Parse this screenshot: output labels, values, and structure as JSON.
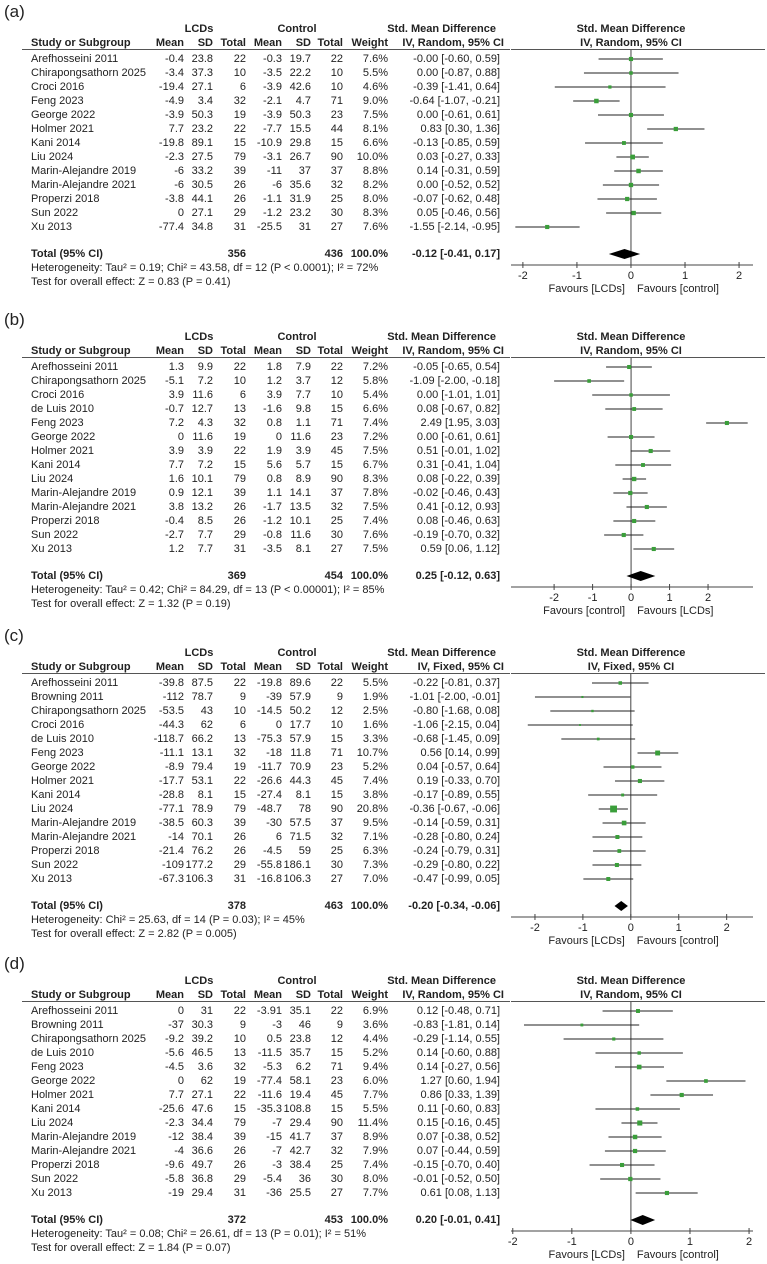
{
  "chart_data": [
    {
      "type": "forest",
      "panel_label": "(a)",
      "group_experimental": "LCDs",
      "group_control": "Control",
      "effect_title": "Std. Mean Difference",
      "method": "IV, Random, 95% CI",
      "columns": [
        "Study or Subgroup",
        "Mean",
        "SD",
        "Total",
        "Mean",
        "SD",
        "Total",
        "Weight"
      ],
      "studies": [
        [
          "Arefhosseini 2011",
          "-0.4",
          "23.8",
          "22",
          "-0.3",
          "19.7",
          "22",
          "7.6%",
          "-0.00 [-0.60, 0.59]"
        ],
        [
          "Chirapongsathorn 2025",
          "-3.4",
          "37.3",
          "10",
          "-3.5",
          "22.2",
          "10",
          "5.5%",
          "0.00 [-0.87, 0.88]"
        ],
        [
          "Croci 2016",
          "-19.4",
          "27.1",
          "6",
          "-3.9",
          "42.6",
          "10",
          "4.6%",
          "-0.39 [-1.41, 0.64]"
        ],
        [
          "Feng 2023",
          "-4.9",
          "3.4",
          "32",
          "-2.1",
          "4.7",
          "71",
          "9.0%",
          "-0.64 [-1.07, -0.21]"
        ],
        [
          "George 2022",
          "-3.9",
          "50.3",
          "19",
          "-3.9",
          "50.3",
          "23",
          "7.5%",
          "0.00 [-0.61, 0.61]"
        ],
        [
          "Holmer 2021",
          "7.7",
          "23.2",
          "22",
          "-7.7",
          "15.5",
          "44",
          "8.1%",
          "0.83 [0.30, 1.36]"
        ],
        [
          "Kani  2014",
          "-19.8",
          "89.1",
          "15",
          "-10.9",
          "29.8",
          "15",
          "6.6%",
          "-0.13 [-0.85, 0.59]"
        ],
        [
          "Liu 2024",
          "-2.3",
          "27.5",
          "79",
          "-3.1",
          "26.7",
          "90",
          "10.0%",
          "0.03 [-0.27, 0.33]"
        ],
        [
          "Marin-Alejandre 2019",
          "-6",
          "33.2",
          "39",
          "-11",
          "37",
          "37",
          "8.8%",
          "0.14 [-0.31, 0.59]"
        ],
        [
          "Marin-Alejandre 2021",
          "-6",
          "30.5",
          "26",
          "-6",
          "35.6",
          "32",
          "8.2%",
          "0.00 [-0.52, 0.52]"
        ],
        [
          "Properzi 2018",
          "-3.8",
          "44.1",
          "26",
          "-1.1",
          "31.9",
          "25",
          "8.0%",
          "-0.07 [-0.62, 0.48]"
        ],
        [
          "Sun 2022",
          "0",
          "27.1",
          "29",
          "-1.2",
          "23.2",
          "30",
          "8.3%",
          "0.05 [-0.46, 0.56]"
        ],
        [
          "Xu 2013",
          "-77.4",
          "34.8",
          "31",
          "-25.5",
          "31",
          "27",
          "7.6%",
          "-1.55 [-2.14, -0.95]"
        ]
      ],
      "total": {
        "label": "Total (95% CI)",
        "n_experimental": "356",
        "n_control": "436",
        "weight": "100.0%",
        "estimate": "-0.12 [-0.41, 0.17]"
      },
      "heterogeneity": "Heterogeneity: Tau² = 0.19; Chi² = 43.58, df = 12 (P < 0.0001); I² = 72%",
      "overall_effect": "Test for overall effect: Z = 0.83 (P = 0.41)",
      "xticks": [
        "-2",
        "-1",
        "0",
        "1",
        "2"
      ],
      "xlim": [
        -2.22,
        2.48
      ],
      "favours_left": "Favours [LCDs]",
      "favours_right": "Favours [control]"
    },
    {
      "type": "forest",
      "panel_label": "(b)",
      "group_experimental": "LCDs",
      "group_control": "Control",
      "effect_title": "Std. Mean Difference",
      "method": "IV, Random, 95% CI",
      "columns": [
        "Study or Subgroup",
        "Mean",
        "SD",
        "Total",
        "Mean",
        "SD",
        "Total",
        "Weight"
      ],
      "studies": [
        [
          "Arefhosseini 2011",
          "1.3",
          "9.9",
          "22",
          "1.8",
          "7.9",
          "22",
          "7.2%",
          "-0.05 [-0.65, 0.54]"
        ],
        [
          "Chirapongsathorn 2025",
          "-5.1",
          "7.2",
          "10",
          "1.2",
          "3.7",
          "12",
          "5.8%",
          "-1.09 [-2.00, -0.18]"
        ],
        [
          "Croci 2016",
          "3.9",
          "11.6",
          "6",
          "3.9",
          "7.7",
          "10",
          "5.4%",
          "0.00 [-1.01, 1.01]"
        ],
        [
          "de Luis 2010",
          "-0.7",
          "12.7",
          "13",
          "-1.6",
          "9.8",
          "15",
          "6.6%",
          "0.08 [-0.67, 0.82]"
        ],
        [
          "Feng 2023",
          "7.2",
          "4.3",
          "32",
          "0.8",
          "1.1",
          "71",
          "7.4%",
          "2.49 [1.95, 3.03]"
        ],
        [
          "George 2022",
          "0",
          "11.6",
          "19",
          "0",
          "11.6",
          "23",
          "7.2%",
          "0.00 [-0.61, 0.61]"
        ],
        [
          "Holmer 2021",
          "3.9",
          "3.9",
          "22",
          "1.9",
          "3.9",
          "45",
          "7.5%",
          "0.51 [-0.01, 1.02]"
        ],
        [
          "Kani  2014",
          "7.7",
          "7.2",
          "15",
          "5.6",
          "5.7",
          "15",
          "6.7%",
          "0.31 [-0.41, 1.04]"
        ],
        [
          "Liu 2024",
          "1.6",
          "10.1",
          "79",
          "0.8",
          "8.9",
          "90",
          "8.3%",
          "0.08 [-0.22, 0.39]"
        ],
        [
          "Marin-Alejandre 2019",
          "0.9",
          "12.1",
          "39",
          "1.1",
          "14.1",
          "37",
          "7.8%",
          "-0.02 [-0.46, 0.43]"
        ],
        [
          "Marin-Alejandre 2021",
          "3.8",
          "13.2",
          "26",
          "-1.7",
          "13.5",
          "32",
          "7.5%",
          "0.41 [-0.12, 0.93]"
        ],
        [
          "Properzi 2018",
          "-0.4",
          "8.5",
          "26",
          "-1.2",
          "10.1",
          "25",
          "7.4%",
          "0.08 [-0.46, 0.63]"
        ],
        [
          "Sun 2022",
          "-2.7",
          "7.7",
          "29",
          "-0.8",
          "11.6",
          "30",
          "7.6%",
          "-0.19 [-0.70, 0.32]"
        ],
        [
          "Xu 2013",
          "1.2",
          "7.7",
          "31",
          "-3.5",
          "8.1",
          "27",
          "7.5%",
          "0.59 [0.06, 1.12]"
        ]
      ],
      "total": {
        "label": "Total (95% CI)",
        "n_experimental": "369",
        "n_control": "454",
        "weight": "100.0%",
        "estimate": "0.25 [-0.12, 0.63]"
      },
      "heterogeneity": "Heterogeneity: Tau² = 0.42; Chi² = 84.29, df = 13 (P < 0.00001); I² = 85%",
      "overall_effect": "Test for overall effect: Z = 1.32 (P = 0.19)",
      "xticks": [
        "-2",
        "-1",
        "0",
        "1",
        "2"
      ],
      "xlim": [
        -3.12,
        3.48
      ],
      "favours_left": "Favours [control]",
      "favours_right": "Favours [LCDs]"
    },
    {
      "type": "forest",
      "panel_label": "(c)",
      "group_experimental": "LCDs",
      "group_control": "Control",
      "effect_title": "Std. Mean Difference",
      "method": "IV, Fixed, 95% CI",
      "columns": [
        "Study or Subgroup",
        "Mean",
        "SD",
        "Total",
        "Mean",
        "SD",
        "Total",
        "Weight"
      ],
      "studies": [
        [
          "Arefhosseini 2011",
          "-39.8",
          "87.5",
          "22",
          "-19.8",
          "89.6",
          "22",
          "5.5%",
          "-0.22 [-0.81, 0.37]"
        ],
        [
          "Browning 2011",
          "-112",
          "78.7",
          "9",
          "-39",
          "57.9",
          "9",
          "1.9%",
          "-1.01 [-2.00, -0.01]"
        ],
        [
          "Chirapongsathorn 2025",
          "-53.5",
          "43",
          "10",
          "-14.5",
          "50.2",
          "12",
          "2.5%",
          "-0.80 [-1.68, 0.08]"
        ],
        [
          "Croci 2016",
          "-44.3",
          "62",
          "6",
          "0",
          "17.7",
          "10",
          "1.6%",
          "-1.06 [-2.15, 0.04]"
        ],
        [
          "de Luis 2010",
          "-118.7",
          "66.2",
          "13",
          "-75.3",
          "57.9",
          "15",
          "3.3%",
          "-0.68 [-1.45, 0.09]"
        ],
        [
          "Feng 2023",
          "-11.1",
          "13.1",
          "32",
          "-18",
          "11.8",
          "71",
          "10.7%",
          "0.56 [0.14, 0.99]"
        ],
        [
          "George 2022",
          "-8.9",
          "79.4",
          "19",
          "-11.7",
          "70.9",
          "23",
          "5.2%",
          "0.04 [-0.57, 0.64]"
        ],
        [
          "Holmer 2021",
          "-17.7",
          "53.1",
          "22",
          "-26.6",
          "44.3",
          "45",
          "7.4%",
          "0.19 [-0.33, 0.70]"
        ],
        [
          "Kani  2014",
          "-28.8",
          "8.1",
          "15",
          "-27.4",
          "8.1",
          "15",
          "3.8%",
          "-0.17 [-0.89, 0.55]"
        ],
        [
          "Liu 2024",
          "-77.1",
          "78.9",
          "79",
          "-48.7",
          "78",
          "90",
          "20.8%",
          "-0.36 [-0.67, -0.06]"
        ],
        [
          "Marin-Alejandre 2019",
          "-38.5",
          "60.3",
          "39",
          "-30",
          "57.5",
          "37",
          "9.5%",
          "-0.14 [-0.59, 0.31]"
        ],
        [
          "Marin-Alejandre 2021",
          "-14",
          "70.1",
          "26",
          "6",
          "71.5",
          "32",
          "7.1%",
          "-0.28 [-0.80, 0.24]"
        ],
        [
          "Properzi 2018",
          "-21.4",
          "76.2",
          "26",
          "-4.5",
          "59",
          "25",
          "6.3%",
          "-0.24 [-0.79, 0.31]"
        ],
        [
          "Sun 2022",
          "-109",
          "177.2",
          "29",
          "-55.8",
          "186.1",
          "30",
          "7.3%",
          "-0.29 [-0.80, 0.22]"
        ],
        [
          "Xu 2013",
          "-67.3",
          "106.3",
          "31",
          "-16.8",
          "106.3",
          "27",
          "7.0%",
          "-0.47 [-0.99, 0.05]"
        ]
      ],
      "total": {
        "label": "Total (95% CI)",
        "n_experimental": "378",
        "n_control": "463",
        "weight": "100.0%",
        "estimate": "-0.20 [-0.34, -0.06]"
      },
      "heterogeneity": "Heterogeneity: Chi² = 25.63, df = 14 (P = 0.03); I² = 45%",
      "overall_effect": "Test for overall effect: Z = 2.82 (P = 0.005)",
      "xticks": [
        "-2",
        "-1",
        "0",
        "1",
        "2"
      ],
      "xlim": [
        -2.5,
        2.8
      ],
      "favours_left": "Favours [LCDs]",
      "favours_right": "Favours [control]"
    },
    {
      "type": "forest",
      "panel_label": "(d)",
      "group_experimental": "LCDs",
      "group_control": "Control",
      "effect_title": "Std. Mean Difference",
      "method": "IV, Random, 95% CI",
      "columns": [
        "Study or Subgroup",
        "Mean",
        "SD",
        "Total",
        "Mean",
        "SD",
        "Total",
        "Weight"
      ],
      "studies": [
        [
          "Arefhosseini 2011",
          "0",
          "31",
          "22",
          "-3.91",
          "35.1",
          "22",
          "6.9%",
          "0.12 [-0.48, 0.71]"
        ],
        [
          "Browning 2011",
          "-37",
          "30.3",
          "9",
          "-3",
          "46",
          "9",
          "3.6%",
          "-0.83 [-1.81, 0.14]"
        ],
        [
          "Chirapongsathorn 2025",
          "-9.2",
          "39.2",
          "10",
          "0.5",
          "23.8",
          "12",
          "4.4%",
          "-0.29 [-1.14, 0.55]"
        ],
        [
          "de Luis 2010",
          "-5.6",
          "46.5",
          "13",
          "-11.5",
          "35.7",
          "15",
          "5.2%",
          "0.14 [-0.60, 0.88]"
        ],
        [
          "Feng 2023",
          "-4.5",
          "3.6",
          "32",
          "-5.3",
          "6.2",
          "71",
          "9.4%",
          "0.14 [-0.27, 0.56]"
        ],
        [
          "George 2022",
          "0",
          "62",
          "19",
          "-77.4",
          "58.1",
          "23",
          "6.0%",
          "1.27 [0.60, 1.94]"
        ],
        [
          "Holmer 2021",
          "7.7",
          "27.1",
          "22",
          "-11.6",
          "19.4",
          "45",
          "7.7%",
          "0.86 [0.33, 1.39]"
        ],
        [
          "Kani  2014",
          "-25.6",
          "47.6",
          "15",
          "-35.3",
          "108.8",
          "15",
          "5.5%",
          "0.11 [-0.60, 0.83]"
        ],
        [
          "Liu 2024",
          "-2.3",
          "34.4",
          "79",
          "-7",
          "29.4",
          "90",
          "11.4%",
          "0.15 [-0.16, 0.45]"
        ],
        [
          "Marin-Alejandre 2019",
          "-12",
          "38.4",
          "39",
          "-15",
          "41.7",
          "37",
          "8.9%",
          "0.07 [-0.38, 0.52]"
        ],
        [
          "Marin-Alejandre 2021",
          "-4",
          "36.6",
          "26",
          "-7",
          "42.7",
          "32",
          "7.9%",
          "0.07 [-0.44, 0.59]"
        ],
        [
          "Properzi 2018",
          "-9.6",
          "49.7",
          "26",
          "-3",
          "38.4",
          "25",
          "7.4%",
          "-0.15 [-0.70, 0.40]"
        ],
        [
          "Sun 2022",
          "-5.8",
          "36.8",
          "29",
          "-5.4",
          "36",
          "30",
          "8.0%",
          "-0.01 [-0.52, 0.50]"
        ],
        [
          "Xu 2013",
          "-19",
          "29.4",
          "31",
          "-36",
          "25.5",
          "27",
          "7.7%",
          "0.61 [0.08, 1.13]"
        ]
      ],
      "total": {
        "label": "Total (95% CI)",
        "n_experimental": "372",
        "n_control": "453",
        "weight": "100.0%",
        "estimate": "0.20 [-0.01, 0.41]"
      },
      "heterogeneity": "Heterogeneity: Tau² = 0.08; Chi² = 26.61, df = 13 (P = 0.01); I² = 51%",
      "overall_effect": "Test for overall effect: Z = 1.84 (P = 0.07)",
      "xticks": [
        "-2",
        "-1",
        "0",
        "1",
        "2"
      ],
      "xlim": [
        -2.03,
        2.27
      ],
      "favours_left": "Favours [LCDs]",
      "favours_right": "Favours [control]"
    }
  ],
  "colors": {
    "marker": "#3a9e3a",
    "line": "#222222",
    "diamond": "#000000",
    "axis": "#444444"
  }
}
